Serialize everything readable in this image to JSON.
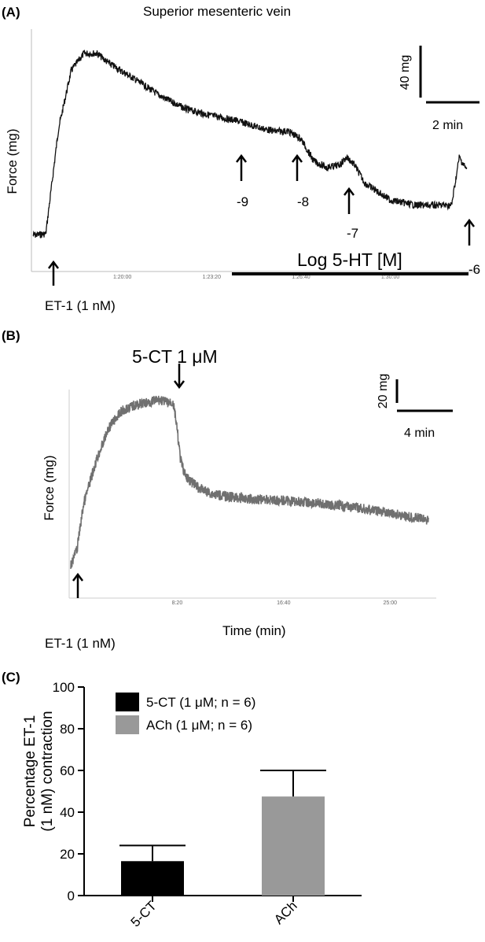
{
  "panels": {
    "a": {
      "label": "(A)",
      "title": "Superior mesenteric vein",
      "ylabel": "Force (mg)",
      "scale_force": "40 mg",
      "scale_time": "2 min",
      "time_ticks": [
        "1:20:00",
        "1:23:20",
        "1:26:40",
        "1:30:00"
      ],
      "ticks_color": "#666666",
      "stimulus": "ET-1 (1 nM)",
      "drug_label": "Log 5-HT [M]",
      "dose_labels": [
        "-9",
        "-8",
        "-7",
        "-6"
      ],
      "trace_color": "#111111"
    },
    "b": {
      "label": "(B)",
      "drug_label": "5-CT 1 μM",
      "ylabel": "Force (mg)",
      "xlabel": "Time (min)",
      "scale_force": "20 mg",
      "scale_time": "4 min",
      "time_ticks": [
        "8:20",
        "16:40",
        "25:00"
      ],
      "stimulus": "ET-1 (1 nM)",
      "trace_color": "#707070"
    },
    "c": {
      "label": "(C)",
      "legend": [
        {
          "text": "5-CT (1 μM; n = 6)",
          "color": "#000000"
        },
        {
          "text": "ACh (1 μM; n = 6)",
          "color": "#999999"
        }
      ]
    }
  },
  "chart_data": [
    {
      "type": "line",
      "title": "Superior mesenteric vein",
      "ylabel": "Force (mg)",
      "xlabel": "",
      "x_tick_labels": [
        "1:20:00",
        "1:23:20",
        "1:26:40",
        "1:30:00"
      ],
      "series": [
        {
          "name": "",
          "x": [
            0,
            0.5,
            1.0,
            1.5,
            2.0,
            2.5,
            3.0,
            4.0,
            5.0,
            6.0,
            7.0,
            8.0,
            9.0,
            9.5,
            10.0,
            10.5,
            11.0,
            11.5,
            12.0,
            12.3,
            12.6,
            13.0,
            14.0,
            15.0,
            16.0,
            16.4,
            16.7,
            17.0
          ],
          "y": [
            8,
            9,
            90,
            135,
            148,
            148,
            140,
            128,
            115,
            105,
            100,
            96,
            90,
            88,
            88,
            82,
            65,
            60,
            62,
            68,
            62,
            48,
            35,
            31,
            31,
            31,
            68,
            58
          ]
        }
      ],
      "annotations": [
        "ET-1 (1 nM)",
        "-9",
        "-8",
        "-7",
        "-6",
        "Log 5-HT [M]",
        "40 mg",
        "2 min"
      ]
    },
    {
      "type": "line",
      "ylabel": "Force (mg)",
      "xlabel": "Time (min)",
      "x_tick_labels": [
        "8:20",
        "16:40",
        "25:00"
      ],
      "series": [
        {
          "name": "",
          "x": [
            0,
            0.5,
            1,
            2,
            3,
            4,
            5,
            6,
            7,
            7.5,
            8,
            8.2,
            8.6,
            9,
            10,
            11,
            12,
            14,
            16,
            18,
            20,
            22,
            24,
            26,
            28
          ],
          "y": [
            1,
            4,
            12,
            20,
            26,
            29,
            30,
            30.5,
            31,
            30.5,
            30.5,
            28,
            20,
            17,
            15,
            14,
            13.5,
            13,
            12.8,
            12.5,
            12,
            11.5,
            10.8,
            10,
            9.2
          ]
        }
      ],
      "annotations": [
        "5-CT 1 μM",
        "ET-1 (1 nM)",
        "20 mg",
        "4 min"
      ]
    },
    {
      "type": "bar",
      "categories": [
        "5-CT",
        "ACh"
      ],
      "values": [
        16.5,
        47.5
      ],
      "errors": [
        7.5,
        12.5
      ],
      "colors": [
        "#000000",
        "#999999"
      ],
      "ylabel_lines": [
        "Percentage ET-1",
        "(1 nM) contraction"
      ],
      "ylim": [
        0,
        100
      ],
      "yticks": [
        0,
        20,
        40,
        60,
        80,
        100
      ],
      "legend": [
        "5-CT (1 μM; n = 6)",
        "ACh (1 μM; n = 6)"
      ],
      "legend_position": "top-left"
    }
  ]
}
